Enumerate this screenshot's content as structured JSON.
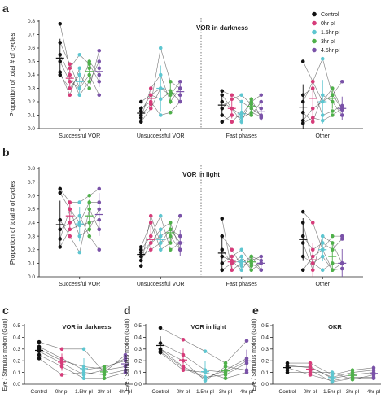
{
  "colors": {
    "Control": "#111111",
    "0hr pI": "#d63c7a",
    "1.5hr pI": "#5ec6d0",
    "3hr pI": "#4fb04a",
    "4.5hr pI": "#7a52a8",
    "4hr pI": "#7a52a8"
  },
  "chart_data": [
    {
      "panel": "a",
      "type": "scatter",
      "title": "VOR in darkness",
      "ylabel": "Proportion of total # of cycles",
      "categories": [
        "Successful VOR",
        "Unsuccessful VOR",
        "Fast phases",
        "Other"
      ],
      "ylim": [
        0,
        0.8
      ],
      "yticks": [
        0.0,
        0.1,
        0.2,
        0.3,
        0.4,
        0.5,
        0.6,
        0.7,
        0.8
      ],
      "legend": [
        "Control",
        "0hr pI",
        "1.5hr pI",
        "3hr pI",
        "4.5hr pI"
      ],
      "legend_position": "top-right",
      "groups": [
        "Control",
        "0hr pI",
        "1.5hr pI",
        "3hr pI",
        "4.5hr pI"
      ],
      "subjects": [
        [
          [
            0.78,
            0.45,
            0.55,
            0.48,
            0.35
          ],
          [
            0.13,
            0.25,
            0.22,
            0.27,
            0.25
          ],
          [
            0.05,
            0.1,
            0.08,
            0.12,
            0.09
          ],
          [
            0.04,
            0.08,
            0.06,
            0.1,
            0.15
          ]
        ],
        [
          [
            0.64,
            0.48,
            0.3,
            0.5,
            0.4
          ],
          [
            0.1,
            0.18,
            0.6,
            0.35,
            0.3
          ],
          [
            0.2,
            0.15,
            0.1,
            0.2,
            0.25
          ],
          [
            0.06,
            0.15,
            0.2,
            0.3,
            0.14
          ]
        ],
        [
          [
            0.4,
            0.3,
            0.4,
            0.3,
            0.58
          ],
          [
            0.15,
            0.2,
            0.1,
            0.12,
            0.2
          ],
          [
            0.15,
            0.22,
            0.25,
            0.18,
            0.15
          ],
          [
            0.5,
            0.35,
            0.2,
            0.25,
            0.15
          ]
        ],
        [
          [
            0.55,
            0.4,
            0.25,
            0.35,
            0.5
          ],
          [
            0.05,
            0.15,
            0.3,
            0.25,
            0.35
          ],
          [
            0.28,
            0.25,
            0.2,
            0.15,
            0.1
          ],
          [
            0.12,
            0.05,
            0.25,
            0.2,
            0.1
          ]
        ],
        [
          [
            0.5,
            0.35,
            0.3,
            0.4,
            0.25
          ],
          [
            0.2,
            0.25,
            0.3,
            0.28,
            0.2
          ],
          [
            0.1,
            0.05,
            0.12,
            0.1,
            0.2
          ],
          [
            0.2,
            0.35,
            0.52,
            0.25,
            0.35
          ]
        ],
        [
          [
            0.42,
            0.25,
            0.45,
            0.45,
            0.45
          ],
          [
            0.08,
            0.3,
            0.4,
            0.2,
            0.3
          ],
          [
            0.25,
            0.15,
            0.05,
            0.22,
            0.08
          ],
          [
            0.25,
            0.3,
            0.1,
            0.13,
            0.17
          ]
        ]
      ]
    },
    {
      "panel": "b",
      "type": "scatter",
      "title": "VOR in light",
      "ylabel": "Proportion of total # of cycles",
      "categories": [
        "Successful VOR",
        "Unsuccessful VOR",
        "Fast phases",
        "Other"
      ],
      "ylim": [
        0,
        0.8
      ],
      "yticks": [
        0.0,
        0.1,
        0.2,
        0.3,
        0.4,
        0.5,
        0.6,
        0.7,
        0.8
      ],
      "groups": [
        "Control",
        "0hr pI",
        "1.5hr pI",
        "3hr pI",
        "4.5hr pI"
      ],
      "subjects": [
        [
          [
            0.65,
            0.55,
            0.55,
            0.6,
            0.65
          ],
          [
            0.12,
            0.25,
            0.3,
            0.35,
            0.3
          ],
          [
            0.05,
            0.1,
            0.12,
            0.08,
            0.1
          ],
          [
            0.15,
            0.1,
            0.05,
            0.1,
            0.1
          ]
        ],
        [
          [
            0.62,
            0.5,
            0.4,
            0.55,
            0.55
          ],
          [
            0.2,
            0.3,
            0.45,
            0.2,
            0.25
          ],
          [
            0.43,
            0.05,
            0.1,
            0.15,
            0.05
          ],
          [
            0.05,
            0.15,
            0.2,
            0.05,
            0.1
          ]
        ],
        [
          [
            0.42,
            0.3,
            0.18,
            0.5,
            0.35
          ],
          [
            0.22,
            0.4,
            0.2,
            0.25,
            0.45
          ],
          [
            0.1,
            0.15,
            0.2,
            0.1,
            0.05
          ],
          [
            0.48,
            0.4,
            0.2,
            0.3,
            0.3
          ]
        ],
        [
          [
            0.35,
            0.4,
            0.45,
            0.3,
            0.2
          ],
          [
            0.18,
            0.25,
            0.35,
            0.4,
            0.2
          ],
          [
            0.3,
            0.2,
            0.08,
            0.12,
            0.15
          ],
          [
            0.3,
            0.2,
            0.25,
            0.2,
            0.28
          ]
        ],
        [
          [
            0.28,
            0.5,
            0.3,
            0.35,
            0.5
          ],
          [
            0.08,
            0.45,
            0.25,
            0.3,
            0.2
          ],
          [
            0.2,
            0.1,
            0.15,
            0.05,
            0.1
          ],
          [
            0.25,
            0.05,
            0.3,
            0.25,
            0.1
          ]
        ],
        [
          [
            0.22,
            0.35,
            0.38,
            0.4,
            0.42
          ],
          [
            0.15,
            0.2,
            0.25,
            0.35,
            0.25
          ],
          [
            0.15,
            0.12,
            0.05,
            0.15,
            0.12
          ],
          [
            0.4,
            0.1,
            0.15,
            0.05,
            0.06
          ]
        ]
      ]
    },
    {
      "panel": "c",
      "type": "scatter",
      "title": "VOR in darkness",
      "ylabel": "Eye / Stimulus motion (Gain)",
      "categories": [
        "Control",
        "0hr pI",
        "1.5hr pI",
        "3hr pI",
        "4hr pI"
      ],
      "ylim": [
        0,
        0.5
      ],
      "yticks": [
        0.0,
        0.1,
        0.2,
        0.3,
        0.4,
        0.5
      ],
      "groups": [
        "Control",
        "0hr pI",
        "1.5hr pI",
        "3hr pI",
        "4hr pI"
      ],
      "subjects": [
        [
          0.36,
          0.3,
          0.3,
          0.1,
          0.25
        ],
        [
          0.32,
          0.22,
          0.12,
          0.15,
          0.2
        ],
        [
          0.28,
          0.18,
          0.08,
          0.12,
          0.15
        ],
        [
          0.25,
          0.15,
          0.05,
          0.05,
          0.1
        ],
        [
          0.22,
          0.08,
          0.1,
          0.08,
          0.12
        ],
        [
          0.3,
          0.2,
          0.15,
          0.13,
          0.22
        ]
      ]
    },
    {
      "panel": "d",
      "type": "scatter",
      "title": "VOR in light",
      "ylabel": "Eye / Stimulus motion (Gain)",
      "categories": [
        "Control",
        "0hr pI",
        "1.5hr pI",
        "3hr pI",
        "4hr pI"
      ],
      "ylim": [
        0,
        0.5
      ],
      "yticks": [
        0.0,
        0.1,
        0.2,
        0.3,
        0.4,
        0.5
      ],
      "groups": [
        "Control",
        "0hr pI",
        "1.5hr pI",
        "3hr pI",
        "4hr pI"
      ],
      "subjects": [
        [
          0.48,
          0.38,
          0.28,
          0.18,
          0.37
        ],
        [
          0.35,
          0.25,
          0.12,
          0.1,
          0.2
        ],
        [
          0.3,
          0.15,
          0.06,
          0.08,
          0.18
        ],
        [
          0.27,
          0.12,
          0.1,
          0.05,
          0.1
        ],
        [
          0.3,
          0.2,
          0.03,
          0.15,
          0.12
        ],
        [
          0.28,
          0.14,
          0.05,
          0.12,
          0.22
        ]
      ]
    },
    {
      "panel": "e",
      "type": "scatter",
      "title": "OKR",
      "ylabel": "Eye / Stimulus motion (Gain)",
      "categories": [
        "Control",
        "0hr pI",
        "1.5hr pI",
        "3hr pI",
        "4hr pI"
      ],
      "ylim": [
        0,
        0.5
      ],
      "yticks": [
        0.0,
        0.1,
        0.2,
        0.3,
        0.4,
        0.5
      ],
      "groups": [
        "Control",
        "0hr pI",
        "1.5hr pI",
        "3hr pI",
        "4hr pI"
      ],
      "subjects": [
        [
          0.18,
          0.18,
          0.08,
          0.12,
          0.14
        ],
        [
          0.15,
          0.15,
          0.05,
          0.08,
          0.1
        ],
        [
          0.12,
          0.12,
          0.02,
          0.05,
          0.05
        ],
        [
          0.1,
          0.1,
          0.1,
          0.04,
          0.08
        ],
        [
          0.16,
          0.14,
          0.06,
          0.1,
          0.12
        ],
        [
          0.14,
          0.08,
          0.03,
          0.06,
          0.06
        ]
      ]
    }
  ]
}
